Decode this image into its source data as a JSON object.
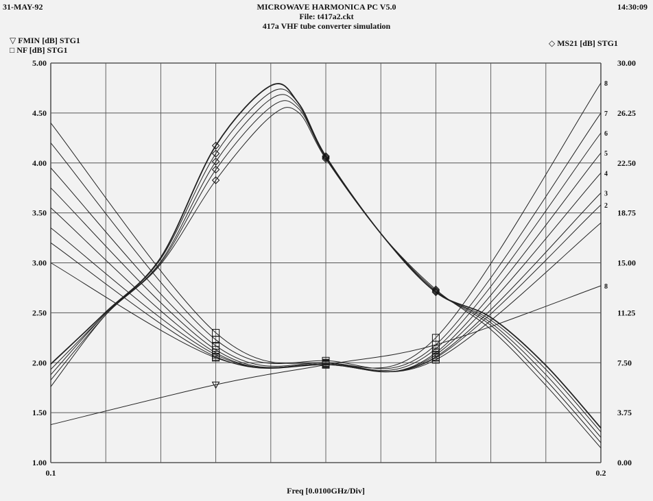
{
  "header": {
    "date": "31-MAY-92",
    "title": "MICROWAVE HARMONICA PC V5.0",
    "file": "File: t417a2.ckt",
    "subtitle": "417a VHF tube converter simulation",
    "time": "14:30:09"
  },
  "legend": {
    "left1": "FMIN [dB] STG1",
    "left2": "NF [dB] STG1",
    "right": "MS21 [dB] STG1"
  },
  "chart_data": {
    "type": "line",
    "title": "417a VHF tube converter simulation",
    "xlabel": "Freq [0.0100GHz/Div]",
    "xlim": [
      0.1,
      0.2
    ],
    "x_ticks": [
      "0.1",
      "0.2"
    ],
    "ylim_left": [
      1.0,
      5.0
    ],
    "y_ticks_left": [
      "5.00",
      "4.50",
      "4.00",
      "3.50",
      "3.00",
      "2.50",
      "2.00",
      "1.50",
      "1.00"
    ],
    "ylim_right": [
      0.0,
      30.0
    ],
    "y_ticks_right": [
      "30.00",
      "26.25",
      "22.50",
      "18.75",
      "15.00",
      "11.25",
      "7.50",
      "3.75",
      "0.00"
    ],
    "grid": true,
    "right_curve_labels": [
      "8",
      "7",
      "6",
      "5",
      "4",
      "3",
      "2",
      "8"
    ],
    "series": [
      {
        "name": "FMIN [dB] STG1",
        "axis": "left",
        "x": [
          0.1,
          0.13,
          0.15,
          0.17,
          0.2
        ],
        "y": [
          1.38,
          1.78,
          1.98,
          2.18,
          2.77
        ]
      },
      {
        "name": "NF [dB] STG1",
        "axis": "left",
        "x": [
          0.1,
          0.13,
          0.15,
          0.17,
          0.2
        ],
        "y": [
          4.4,
          2.3,
          2.0,
          2.25,
          4.8
        ]
      },
      {
        "axis": "left",
        "x": [
          0.1,
          0.13,
          0.15,
          0.17,
          0.2
        ],
        "y": [
          4.2,
          2.23,
          2.02,
          2.18,
          4.5
        ]
      },
      {
        "axis": "left",
        "x": [
          0.1,
          0.13,
          0.15,
          0.17,
          0.2
        ],
        "y": [
          3.95,
          2.17,
          2.0,
          2.14,
          4.3
        ]
      },
      {
        "axis": "left",
        "x": [
          0.1,
          0.13,
          0.15,
          0.17,
          0.2
        ],
        "y": [
          3.75,
          2.13,
          1.99,
          2.1,
          4.1
        ]
      },
      {
        "axis": "left",
        "x": [
          0.1,
          0.13,
          0.15,
          0.17,
          0.2
        ],
        "y": [
          3.55,
          2.1,
          1.99,
          2.08,
          3.9
        ]
      },
      {
        "axis": "left",
        "x": [
          0.1,
          0.13,
          0.15,
          0.17,
          0.2
        ],
        "y": [
          3.35,
          2.08,
          1.99,
          2.06,
          3.7
        ]
      },
      {
        "axis": "left",
        "x": [
          0.1,
          0.13,
          0.15,
          0.17,
          0.2
        ],
        "y": [
          3.2,
          2.06,
          1.98,
          2.05,
          3.58
        ]
      },
      {
        "axis": "left",
        "x": [
          0.1,
          0.13,
          0.15,
          0.17,
          0.2
        ],
        "y": [
          3.0,
          2.05,
          1.98,
          2.03,
          3.4
        ]
      },
      {
        "name": "MS21 [dB] STG1",
        "axis": "right",
        "x": [
          0.1,
          0.11,
          0.12,
          0.13,
          0.14,
          0.145,
          0.15,
          0.16,
          0.17,
          0.18,
          0.19,
          0.2
        ],
        "y": [
          7.4,
          11.3,
          15.4,
          23.8,
          28.3,
          27.0,
          23.0,
          17.2,
          12.8,
          10.9,
          7.3,
          2.6
        ]
      },
      {
        "axis": "right",
        "x": [
          0.1,
          0.11,
          0.12,
          0.13,
          0.14,
          0.145,
          0.15,
          0.16,
          0.17,
          0.18,
          0.19,
          0.2
        ],
        "y": [
          7.0,
          11.2,
          15.3,
          23.2,
          27.8,
          27.0,
          23.0,
          17.2,
          12.8,
          10.7,
          7.0,
          2.3
        ]
      },
      {
        "axis": "right",
        "x": [
          0.1,
          0.11,
          0.12,
          0.13,
          0.14,
          0.145,
          0.15,
          0.16,
          0.17,
          0.18,
          0.19,
          0.2
        ],
        "y": [
          6.6,
          11.2,
          15.1,
          22.6,
          27.3,
          26.8,
          22.9,
          17.2,
          12.9,
          10.5,
          6.6,
          1.9
        ]
      },
      {
        "axis": "right",
        "x": [
          0.1,
          0.11,
          0.12,
          0.13,
          0.14,
          0.145,
          0.15,
          0.16,
          0.17,
          0.18,
          0.19,
          0.2
        ],
        "y": [
          6.2,
          11.1,
          15.0,
          22.0,
          26.7,
          26.6,
          22.9,
          17.2,
          12.9,
          10.3,
          6.2,
          1.5
        ]
      },
      {
        "axis": "right",
        "x": [
          0.1,
          0.11,
          0.12,
          0.13,
          0.14,
          0.145,
          0.15,
          0.16,
          0.17,
          0.18,
          0.19,
          0.2
        ],
        "y": [
          5.7,
          11.1,
          14.9,
          21.2,
          26.0,
          26.3,
          22.8,
          17.2,
          13.0,
          10.0,
          5.8,
          1.1
        ]
      }
    ]
  }
}
